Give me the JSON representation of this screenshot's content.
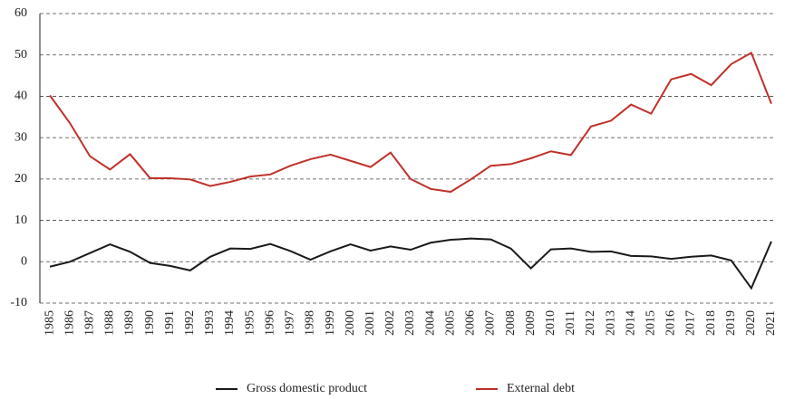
{
  "chart_data": {
    "type": "line",
    "categories": [
      "1985",
      "1986",
      "1987",
      "1988",
      "1989",
      "1990",
      "1991",
      "1992",
      "1993",
      "1994",
      "1995",
      "1996",
      "1997",
      "1998",
      "1999",
      "2000",
      "2001",
      "2002",
      "2003",
      "2004",
      "2005",
      "2006",
      "2007",
      "2008",
      "2009",
      "2010",
      "2011",
      "2012",
      "2013",
      "2014",
      "2015",
      "2016",
      "2017",
      "2018",
      "2019",
      "2020",
      "2021"
    ],
    "series": [
      {
        "name": "Gross domestic product",
        "color": "#1a1a1a",
        "values": [
          -1.2,
          0,
          2.1,
          4.2,
          2.4,
          -0.3,
          -1,
          -2.1,
          1.2,
          3.2,
          3.1,
          4.3,
          2.6,
          0.5,
          2.5,
          4.2,
          2.7,
          3.7,
          2.9,
          4.6,
          5.3,
          5.6,
          5.4,
          3.2,
          -1.6,
          3,
          3.2,
          2.4,
          2.5,
          1.4,
          1.3,
          0.7,
          1.2,
          1.5,
          0.3,
          -6.4,
          4.9
        ]
      },
      {
        "name": "External debt",
        "color": "#c0302a",
        "values": [
          40.2,
          33.5,
          25.5,
          22.3,
          26,
          20.2,
          20.2,
          19.9,
          18.3,
          19.3,
          20.6,
          21.1,
          23.2,
          24.8,
          25.9,
          24.4,
          22.9,
          26.4,
          20,
          17.6,
          16.9,
          19.9,
          23.2,
          23.6,
          25,
          26.7,
          25.8,
          32.7,
          34.1,
          38,
          35.8,
          44.1,
          45.4,
          42.7,
          47.8,
          50.5,
          38.2
        ]
      }
    ],
    "ylim": [
      -10,
      60
    ],
    "yticks": [
      -10,
      0,
      10,
      20,
      30,
      40,
      50,
      60
    ],
    "grid": true
  }
}
